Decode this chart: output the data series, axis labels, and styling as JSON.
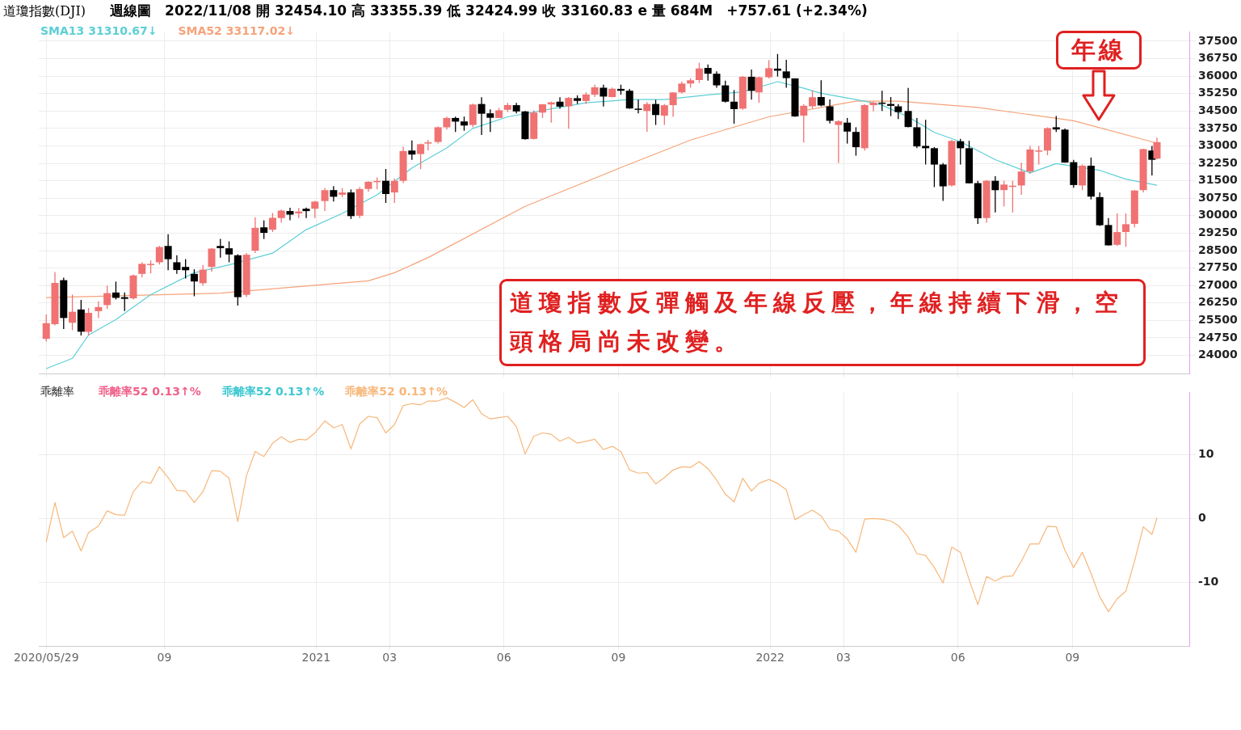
{
  "chart_data": [
    {
      "type": "candlestick",
      "title": "道瓊指數(DJI)",
      "subtitle": "週線圖　2022/11/08 開 32454.10 高 33355.39 低 32424.99 收 33160.83 e 量 684M　+757.61 (+2.34%)",
      "x": [
        "2020-05-29",
        "2020-06-05",
        "2020-06-12",
        "2020-06-19",
        "2020-06-26",
        "2020-07-02",
        "2020-07-10",
        "2020-07-17",
        "2020-07-24",
        "2020-07-31",
        "2020-08-07",
        "2020-08-14",
        "2020-08-21",
        "2020-08-28",
        "2020-09-04",
        "2020-09-11",
        "2020-09-18",
        "2020-09-25",
        "2020-10-02",
        "2020-10-09",
        "2020-10-16",
        "2020-10-23",
        "2020-10-30",
        "2020-11-06",
        "2020-11-13",
        "2020-11-20",
        "2020-11-27",
        "2020-12-04",
        "2020-12-11",
        "2020-12-18",
        "2020-12-24",
        "2020-12-31",
        "2021-01-08",
        "2021-01-15",
        "2021-01-22",
        "2021-01-29",
        "2021-02-05",
        "2021-02-12",
        "2021-02-19",
        "2021-02-26",
        "2021-03-05",
        "2021-03-12",
        "2021-03-19",
        "2021-03-26",
        "2021-04-01",
        "2021-04-09",
        "2021-04-16",
        "2021-04-23",
        "2021-04-30",
        "2021-05-07",
        "2021-05-14",
        "2021-05-21",
        "2021-05-28",
        "2021-06-04",
        "2021-06-11",
        "2021-06-18",
        "2021-06-25",
        "2021-07-02",
        "2021-07-09",
        "2021-07-16",
        "2021-07-23",
        "2021-07-30",
        "2021-08-06",
        "2021-08-13",
        "2021-08-20",
        "2021-08-27",
        "2021-09-03",
        "2021-09-10",
        "2021-09-17",
        "2021-09-24",
        "2021-10-01",
        "2021-10-08",
        "2021-10-15",
        "2021-10-22",
        "2021-10-29",
        "2021-11-05",
        "2021-11-12",
        "2021-11-19",
        "2021-11-26",
        "2021-12-03",
        "2021-12-10",
        "2021-12-17",
        "2021-12-23",
        "2021-12-31",
        "2022-01-07",
        "2022-01-14",
        "2022-01-21",
        "2022-01-28",
        "2022-02-04",
        "2022-02-11",
        "2022-02-18",
        "2022-02-25",
        "2022-03-04",
        "2022-03-11",
        "2022-03-18",
        "2022-03-25",
        "2022-04-01",
        "2022-04-08",
        "2022-04-14",
        "2022-04-22",
        "2022-04-29",
        "2022-05-06",
        "2022-05-13",
        "2022-05-20",
        "2022-05-27",
        "2022-06-03",
        "2022-06-10",
        "2022-06-17",
        "2022-06-24",
        "2022-07-01",
        "2022-07-08",
        "2022-07-15",
        "2022-07-22",
        "2022-07-29",
        "2022-08-05",
        "2022-08-12",
        "2022-08-19",
        "2022-08-26",
        "2022-09-02",
        "2022-09-09",
        "2022-09-16",
        "2022-09-23",
        "2022-09-30",
        "2022-10-07",
        "2022-10-14",
        "2022-10-21",
        "2022-10-28",
        "2022-11-04",
        "2022-11-08"
      ],
      "ohlc": [
        [
          24710,
          25760,
          24590,
          25383
        ],
        [
          25340,
          27580,
          25290,
          27111
        ],
        [
          27230,
          27340,
          25130,
          25605
        ],
        [
          25400,
          26610,
          25080,
          25871
        ],
        [
          25970,
          26380,
          24850,
          25016
        ],
        [
          25010,
          26040,
          24850,
          25827
        ],
        [
          25900,
          26320,
          25600,
          26075
        ],
        [
          26160,
          27000,
          26000,
          26672
        ],
        [
          26700,
          27170,
          26400,
          26470
        ],
        [
          26500,
          26700,
          25900,
          26428
        ],
        [
          26450,
          27480,
          26400,
          27433
        ],
        [
          27500,
          28000,
          27350,
          27931
        ],
        [
          27900,
          28080,
          27520,
          27930
        ],
        [
          28000,
          28700,
          27900,
          28654
        ],
        [
          28700,
          29200,
          27660,
          28133
        ],
        [
          28000,
          28300,
          27500,
          27666
        ],
        [
          27800,
          28140,
          27300,
          27657
        ],
        [
          27500,
          27700,
          26540,
          27174
        ],
        [
          27100,
          27880,
          27000,
          27682
        ],
        [
          27800,
          28610,
          27600,
          28586
        ],
        [
          28700,
          29000,
          28200,
          28606
        ],
        [
          28600,
          28900,
          28000,
          28335
        ],
        [
          28300,
          28340,
          26140,
          26501
        ],
        [
          26600,
          28400,
          26500,
          28323
        ],
        [
          28500,
          29930,
          28400,
          29479
        ],
        [
          29500,
          29800,
          29000,
          29263
        ],
        [
          29400,
          30120,
          29300,
          29910
        ],
        [
          29900,
          30260,
          29700,
          30218
        ],
        [
          30200,
          30340,
          29800,
          30046
        ],
        [
          30100,
          30330,
          29900,
          30179
        ],
        [
          30300,
          30350,
          29900,
          30199
        ],
        [
          30300,
          30640,
          29900,
          30606
        ],
        [
          30630,
          31190,
          30200,
          31097
        ],
        [
          31100,
          31270,
          30610,
          30814
        ],
        [
          30900,
          31190,
          30800,
          30997
        ],
        [
          31000,
          31130,
          29860,
          29983
        ],
        [
          30000,
          31230,
          29900,
          31148
        ],
        [
          31150,
          31480,
          31030,
          31458
        ],
        [
          31460,
          31640,
          31130,
          31494
        ],
        [
          31500,
          32010,
          30550,
          30932
        ],
        [
          31000,
          31600,
          30550,
          31496
        ],
        [
          31500,
          32960,
          31400,
          32779
        ],
        [
          32800,
          33230,
          32400,
          32628
        ],
        [
          32650,
          33100,
          32000,
          33073
        ],
        [
          33100,
          33260,
          32800,
          33153
        ],
        [
          33170,
          33830,
          33100,
          33801
        ],
        [
          33800,
          34260,
          33700,
          34200
        ],
        [
          34200,
          34260,
          33600,
          34043
        ],
        [
          34050,
          34260,
          33650,
          33875
        ],
        [
          33900,
          34810,
          33800,
          34778
        ],
        [
          34800,
          35090,
          33470,
          34382
        ],
        [
          34400,
          34570,
          33600,
          34208
        ],
        [
          34200,
          34630,
          34200,
          34529
        ],
        [
          34550,
          34850,
          34450,
          34756
        ],
        [
          34750,
          34850,
          34400,
          34480
        ],
        [
          34480,
          34500,
          33270,
          33290
        ],
        [
          33300,
          34530,
          33280,
          34433
        ],
        [
          34430,
          34800,
          34200,
          34786
        ],
        [
          34780,
          34900,
          34000,
          34870
        ],
        [
          34900,
          35090,
          34600,
          34687
        ],
        [
          34700,
          35100,
          33740,
          35062
        ],
        [
          35050,
          35170,
          34800,
          34935
        ],
        [
          34930,
          35300,
          34800,
          35209
        ],
        [
          35200,
          35630,
          35100,
          35515
        ],
        [
          35500,
          35630,
          34690,
          35120
        ],
        [
          35100,
          35510,
          35080,
          35455
        ],
        [
          35450,
          35630,
          35200,
          35369
        ],
        [
          35370,
          35450,
          34600,
          34608
        ],
        [
          34600,
          34990,
          34400,
          34584
        ],
        [
          34500,
          34880,
          33610,
          34798
        ],
        [
          34800,
          34980,
          33900,
          34326
        ],
        [
          34300,
          34800,
          33900,
          34746
        ],
        [
          34750,
          35310,
          34250,
          35295
        ],
        [
          35300,
          35770,
          35250,
          35677
        ],
        [
          35680,
          35900,
          35500,
          35820
        ],
        [
          35830,
          36570,
          35700,
          36328
        ],
        [
          36350,
          36500,
          35800,
          36100
        ],
        [
          36100,
          36200,
          35500,
          35602
        ],
        [
          35600,
          35800,
          34870,
          34899
        ],
        [
          34900,
          35400,
          33950,
          34580
        ],
        [
          34600,
          36000,
          34550,
          35971
        ],
        [
          35970,
          36280,
          34990,
          35365
        ],
        [
          35300,
          35980,
          34860,
          35950
        ],
        [
          35950,
          36680,
          35900,
          36338
        ],
        [
          36320,
          36952,
          35980,
          36231
        ],
        [
          36200,
          36700,
          35500,
          35912
        ],
        [
          35900,
          35900,
          34250,
          34265
        ],
        [
          34300,
          34800,
          33150,
          34725
        ],
        [
          34700,
          35380,
          34600,
          35090
        ],
        [
          35100,
          35820,
          34700,
          34738
        ],
        [
          34700,
          35000,
          33960,
          34079
        ],
        [
          33900,
          34100,
          32270,
          34059
        ],
        [
          34000,
          34200,
          33100,
          33615
        ],
        [
          33600,
          33800,
          32580,
          32944
        ],
        [
          32900,
          34800,
          32800,
          34755
        ],
        [
          34750,
          34900,
          34480,
          34862
        ],
        [
          34860,
          35370,
          34500,
          34818
        ],
        [
          34800,
          35100,
          34280,
          34721
        ],
        [
          34700,
          34800,
          34150,
          34451
        ],
        [
          34500,
          35490,
          33800,
          33811
        ],
        [
          33800,
          34200,
          32900,
          32977
        ],
        [
          33000,
          34120,
          32200,
          32899
        ],
        [
          32900,
          32950,
          31230,
          32197
        ],
        [
          32200,
          32260,
          30640,
          31262
        ],
        [
          31300,
          33260,
          31250,
          33213
        ],
        [
          33200,
          33300,
          32200,
          32900
        ],
        [
          32900,
          33220,
          31390,
          31393
        ],
        [
          31400,
          31500,
          29650,
          29889
        ],
        [
          29900,
          31530,
          29700,
          31501
        ],
        [
          31500,
          31700,
          30140,
          31097
        ],
        [
          31100,
          31500,
          30400,
          31338
        ],
        [
          31250,
          31500,
          30140,
          31289
        ],
        [
          31300,
          32280,
          30900,
          31899
        ],
        [
          31900,
          33000,
          31800,
          32845
        ],
        [
          32790,
          33000,
          32200,
          32803
        ],
        [
          32800,
          33800,
          32600,
          33761
        ],
        [
          33800,
          34280,
          33600,
          33707
        ],
        [
          33700,
          33750,
          32280,
          32283
        ],
        [
          32300,
          32400,
          31200,
          31318
        ],
        [
          31300,
          32200,
          31100,
          32152
        ],
        [
          32150,
          32500,
          30700,
          30822
        ],
        [
          30800,
          31000,
          29560,
          29590
        ],
        [
          29600,
          29900,
          28720,
          28726
        ],
        [
          28750,
          30100,
          28700,
          29297
        ],
        [
          29300,
          30100,
          28660,
          29635
        ],
        [
          29650,
          31100,
          29500,
          31083
        ],
        [
          31100,
          32880,
          31000,
          32862
        ],
        [
          32800,
          33000,
          31730,
          32403
        ],
        [
          32454.1,
          33355.39,
          32424.99,
          33160.83
        ]
      ],
      "colors": [
        "#f07272",
        "#f07272",
        "#000000",
        "#f07272",
        "#000000",
        "#f07272",
        "#f07272",
        "#f07272",
        "#000000",
        "#000000",
        "#f07272",
        "#f07272",
        "#f07272",
        "#f07272",
        "#000000",
        "#000000",
        "#000000",
        "#000000",
        "#f07272",
        "#f07272",
        "#000000",
        "#000000",
        "#000000",
        "#f07272",
        "#f07272",
        "#000000",
        "#f07272",
        "#f07272",
        "#000000",
        "#f07272",
        "#000000",
        "#f07272",
        "#f07272",
        "#000000",
        "#f07272",
        "#000000",
        "#f07272",
        "#f07272",
        "#f07272",
        "#000000",
        "#f07272",
        "#f07272",
        "#000000",
        "#f07272",
        "#f07272",
        "#f07272",
        "#f07272",
        "#000000",
        "#000000",
        "#f07272",
        "#000000",
        "#000000",
        "#f07272",
        "#f07272",
        "#000000",
        "#000000",
        "#f07272",
        "#f07272",
        "#f07272",
        "#000000",
        "#f07272",
        "#000000",
        "#f07272",
        "#f07272",
        "#000000",
        "#f07272",
        "#000000",
        "#000000",
        "#000000",
        "#f07272",
        "#000000",
        "#f07272",
        "#f07272",
        "#f07272",
        "#f07272",
        "#f07272",
        "#000000",
        "#000000",
        "#000000",
        "#000000",
        "#f07272",
        "#000000",
        "#f07272",
        "#f07272",
        "#000000",
        "#000000",
        "#000000",
        "#f07272",
        "#f07272",
        "#000000",
        "#000000",
        "#f07272",
        "#000000",
        "#000000",
        "#f07272",
        "#f07272",
        "#000000",
        "#000000",
        "#000000",
        "#000000",
        "#000000",
        "#000000",
        "#000000",
        "#000000",
        "#f07272",
        "#000000",
        "#000000",
        "#000000",
        "#f07272",
        "#000000",
        "#f07272",
        "#f07272",
        "#f07272",
        "#f07272",
        "#f07272",
        "#f07272",
        "#000000",
        "#000000",
        "#000000",
        "#f07272",
        "#000000",
        "#000000",
        "#000000",
        "#f07272",
        "#f07272",
        "#f07272",
        "#f07272",
        "#000000",
        "#f07272"
      ],
      "series": [
        {
          "type": "line",
          "name": "SMA13 31310.67↓",
          "color": "#5ccfd6",
          "x": [
            "2020-05-29",
            "2020-06-19",
            "2020-07-02",
            "2020-07-24",
            "2020-08-21",
            "2020-09-25",
            "2020-10-23",
            "2020-11-27",
            "2020-12-24",
            "2021-01-22",
            "2021-02-19",
            "2021-03-19",
            "2021-04-16",
            "2021-05-07",
            "2021-06-04",
            "2021-07-09",
            "2021-08-06",
            "2021-09-10",
            "2021-10-08",
            "2021-11-12",
            "2021-12-10",
            "2022-01-07",
            "2022-01-28",
            "2022-02-11",
            "2022-03-18",
            "2022-04-01",
            "2022-04-22",
            "2022-05-13",
            "2022-06-03",
            "2022-07-01",
            "2022-07-29",
            "2022-08-19",
            "2022-09-23",
            "2022-10-14",
            "2022-11-08"
          ],
          "values": [
            23430,
            23870,
            24870,
            25540,
            26610,
            27550,
            27890,
            28390,
            29400,
            30100,
            30900,
            32050,
            32910,
            33750,
            34250,
            34590,
            34850,
            34990,
            34990,
            35190,
            35320,
            35760,
            35480,
            35260,
            34920,
            34750,
            34250,
            33580,
            33180,
            32410,
            31840,
            32240,
            31950,
            31570,
            31310
          ]
        },
        {
          "type": "line",
          "name": "SMA52 33117.02↓",
          "color": "#f5a37a",
          "x": [
            "2020-05-29",
            "2020-10-16",
            "2021-02-12",
            "2021-03-05",
            "2021-04-01",
            "2021-06-18",
            "2021-09-03",
            "2021-10-29",
            "2021-12-10",
            "2021-12-31",
            "2022-03-11",
            "2022-04-14",
            "2022-06-17",
            "2022-09-02",
            "2022-11-08"
          ],
          "values": [
            26480,
            26670,
            27200,
            27550,
            28200,
            30400,
            32070,
            33250,
            33920,
            34250,
            34920,
            34920,
            34650,
            34080,
            33120
          ]
        }
      ],
      "xlim": [
        "2020-05-23",
        "2022-12-04"
      ],
      "xticks": [
        {
          "value": "2020-05-29",
          "label": null
        },
        {
          "value": "2020-09",
          "label": null
        },
        {
          "value": "2021",
          "label": null
        },
        {
          "value": "2021-03",
          "label": null
        },
        {
          "value": "2021-06",
          "label": null
        },
        {
          "value": "2021-09",
          "label": null
        },
        {
          "value": "2022",
          "label": null
        },
        {
          "value": "2022-03",
          "label": null
        },
        {
          "value": "2022-06",
          "label": null
        },
        {
          "value": "2022-09",
          "label": null
        }
      ],
      "ylim": [
        23200,
        37900
      ],
      "yticks": [
        24000,
        24750,
        25500,
        26250,
        27000,
        27750,
        28500,
        29250,
        30000,
        30750,
        31500,
        32250,
        33000,
        33750,
        34500,
        35250,
        36000,
        36750,
        37500
      ],
      "grid": true,
      "legend": "top left",
      "tick_labels": "y",
      "annotations": [
        "年線",
        "道瓊指數反彈觸及年線反壓，年線持續下滑，空頭格局尚未改變。"
      ]
    },
    {
      "type": "line",
      "title": "乖離率",
      "x": [
        "2020-05-29",
        "2020-06-05",
        "2020-06-12",
        "2020-06-19",
        "2020-06-26",
        "2020-07-02",
        "2020-07-10",
        "2020-07-17",
        "2020-07-24",
        "2020-07-31",
        "2020-08-07",
        "2020-08-14",
        "2020-08-21",
        "2020-08-28",
        "2020-09-04",
        "2020-09-11",
        "2020-09-18",
        "2020-09-25",
        "2020-10-02",
        "2020-10-09",
        "2020-10-16",
        "2020-10-23",
        "2020-10-30",
        "2020-11-06",
        "2020-11-13",
        "2020-11-20",
        "2020-11-27",
        "2020-12-04",
        "2020-12-11",
        "2020-12-18",
        "2020-12-24",
        "2020-12-31",
        "2021-01-08",
        "2021-01-15",
        "2021-01-22",
        "2021-01-29",
        "2021-02-05",
        "2021-02-12",
        "2021-02-19",
        "2021-02-26",
        "2021-03-05",
        "2021-03-12",
        "2021-03-19",
        "2021-03-26",
        "2021-04-01",
        "2021-04-09",
        "2021-04-16",
        "2021-04-23",
        "2021-04-30",
        "2021-05-07",
        "2021-05-14",
        "2021-05-21",
        "2021-05-28",
        "2021-06-04",
        "2021-06-11",
        "2021-06-18",
        "2021-06-25",
        "2021-07-02",
        "2021-07-09",
        "2021-07-16",
        "2021-07-23",
        "2021-07-30",
        "2021-08-06",
        "2021-08-13",
        "2021-08-20",
        "2021-08-27",
        "2021-09-03",
        "2021-09-10",
        "2021-09-17",
        "2021-09-24",
        "2021-10-01",
        "2021-10-08",
        "2021-10-15",
        "2021-10-22",
        "2021-10-29",
        "2021-11-05",
        "2021-11-12",
        "2021-11-19",
        "2021-11-26",
        "2021-12-03",
        "2021-12-10",
        "2021-12-17",
        "2021-12-23",
        "2021-12-31",
        "2022-01-07",
        "2022-01-14",
        "2022-01-21",
        "2022-01-28",
        "2022-02-04",
        "2022-02-11",
        "2022-02-18",
        "2022-02-25",
        "2022-03-04",
        "2022-03-11",
        "2022-03-18",
        "2022-03-25",
        "2022-04-01",
        "2022-04-08",
        "2022-04-14",
        "2022-04-22",
        "2022-04-29",
        "2022-05-06",
        "2022-05-13",
        "2022-05-20",
        "2022-05-27",
        "2022-06-03",
        "2022-06-10",
        "2022-06-17",
        "2022-06-24",
        "2022-07-01",
        "2022-07-08",
        "2022-07-15",
        "2022-07-22",
        "2022-07-29",
        "2022-08-05",
        "2022-08-12",
        "2022-08-19",
        "2022-08-26",
        "2022-09-02",
        "2022-09-09",
        "2022-09-16",
        "2022-09-23",
        "2022-09-30",
        "2022-10-07",
        "2022-10-14",
        "2022-10-21",
        "2022-10-28",
        "2022-11-04",
        "2022-11-08"
      ],
      "series": [
        {
          "name": "乖離率52 0.13↑%",
          "color": "#f0608a",
          "values": [
            null,
            null,
            null,
            null,
            null,
            null,
            null,
            null,
            null,
            null,
            null,
            null,
            null,
            null,
            null,
            null,
            null,
            null,
            null,
            null,
            null,
            null,
            null,
            null,
            null,
            null,
            null,
            null,
            null,
            null,
            null,
            null,
            null,
            null,
            null,
            null,
            null,
            null,
            null,
            null,
            null,
            null,
            null,
            null,
            null,
            null,
            null,
            null,
            null,
            null,
            null,
            null,
            null,
            null,
            null,
            null,
            null,
            null,
            null,
            null,
            null,
            null,
            null,
            null,
            null,
            null,
            null,
            null,
            null,
            null,
            null,
            null,
            null,
            null,
            null,
            null,
            null,
            null,
            null,
            null,
            null,
            null,
            null,
            null,
            null,
            null,
            null,
            null,
            null,
            null,
            null,
            null,
            null,
            null,
            null,
            null,
            null,
            null,
            null,
            null,
            null,
            null,
            null,
            null,
            null,
            null,
            null,
            null,
            null,
            null,
            null,
            null,
            null,
            null,
            null,
            null,
            null,
            null,
            null,
            null,
            null,
            null,
            null,
            null,
            null,
            null,
            null,
            null,
            null
          ]
        },
        {
          "name": "乖離率52 0.13↑%",
          "color": "#3cc8d0",
          "values": [
            null,
            null,
            null,
            null,
            null,
            null,
            null,
            null,
            null,
            null,
            null,
            null,
            null,
            null,
            null,
            null,
            null,
            null,
            null,
            null,
            null,
            null,
            null,
            null,
            null,
            null,
            null,
            null,
            null,
            null,
            null,
            null,
            null,
            null,
            null,
            null,
            null,
            null,
            null,
            null,
            null,
            null,
            null,
            null,
            null,
            null,
            null,
            null,
            null,
            null,
            null,
            null,
            null,
            null,
            null,
            null,
            null,
            null,
            null,
            null,
            null,
            null,
            null,
            null,
            null,
            null,
            null,
            null,
            null,
            null,
            null,
            null,
            null,
            null,
            null,
            null,
            null,
            null,
            null,
            null,
            null,
            null,
            null,
            null,
            null,
            null,
            null,
            null,
            null,
            null,
            null,
            null,
            null,
            null,
            null,
            null,
            null,
            null,
            null,
            null,
            null,
            null,
            null,
            null,
            null,
            null,
            null,
            null,
            null,
            null,
            null,
            null,
            null,
            null,
            null,
            null,
            null,
            null,
            null,
            null,
            null,
            null,
            null,
            null,
            null,
            null,
            null,
            null,
            null
          ]
        },
        {
          "name": "乖離率52 0.13↑%",
          "color": "#f7b77a",
          "values": [
            -3.7,
            2.5,
            -3,
            -2,
            -5.1,
            -2.2,
            -1.2,
            1.2,
            0.6,
            0.5,
            4.2,
            5.8,
            5.5,
            8.1,
            6.4,
            4.4,
            4.3,
            2.5,
            4.2,
            7.5,
            7.4,
            6.3,
            -0.5,
            6.7,
            10.5,
            9.7,
            11.8,
            12.8,
            11.9,
            12.4,
            12.3,
            13.4,
            15.3,
            14.2,
            14.7,
            10.9,
            14.8,
            16.0,
            15.8,
            13.4,
            14.7,
            17.7,
            18.0,
            17.8,
            18.4,
            18.4,
            18.9,
            18.2,
            17.4,
            18.6,
            16.4,
            15.6,
            15.8,
            16.0,
            14.4,
            10.1,
            12.9,
            13.4,
            13.2,
            12.1,
            12.7,
            11.8,
            12.1,
            12.4,
            10.8,
            11.3,
            10.5,
            7.6,
            7.1,
            7.2,
            5.4,
            6.4,
            7.6,
            8.1,
            8.0,
            8.9,
            7.8,
            6.0,
            3.8,
            2.6,
            6.3,
            4.3,
            5.5,
            6.1,
            5.5,
            4.5,
            -0.2,
            0.6,
            1.3,
            0.4,
            -1.7,
            -2.0,
            -3.2,
            -5.3,
            -0.1,
            0,
            -0.1,
            -0.4,
            -1.1,
            -2.9,
            -5.5,
            -5.8,
            -7.7,
            -10.1,
            -4.5,
            -5.3,
            -9.6,
            -13.5,
            -9.1,
            -9.8,
            -9.1,
            -9.0,
            -6.7,
            -4.0,
            -4.0,
            -1.2,
            -1.3,
            -5.0,
            -7.7,
            -5.3,
            -8.6,
            -12.3,
            -14.6,
            -12.6,
            -11.4,
            -6.7,
            -1.3,
            -2.5,
            0.1
          ]
        }
      ],
      "xlim": [
        "2020-05-23",
        "2022-12-04"
      ],
      "xticks": [
        {
          "value": "2020-05-29",
          "label": "2020/05/29"
        },
        {
          "value": "2020-09",
          "label": "09"
        },
        {
          "value": "2021",
          "label": "2021"
        },
        {
          "value": "2021-03",
          "label": "03"
        },
        {
          "value": "2021-06",
          "label": "06"
        },
        {
          "value": "2021-09",
          "label": "09"
        },
        {
          "value": "2022",
          "label": "2022"
        },
        {
          "value": "2022-03",
          "label": "03"
        },
        {
          "value": "2022-06",
          "label": "06"
        },
        {
          "value": "2022-09",
          "label": "09"
        }
      ],
      "ylim": [
        -20,
        19.75
      ],
      "yticks": [
        -10,
        0,
        10
      ],
      "grid": true,
      "legend": "top left"
    }
  ]
}
